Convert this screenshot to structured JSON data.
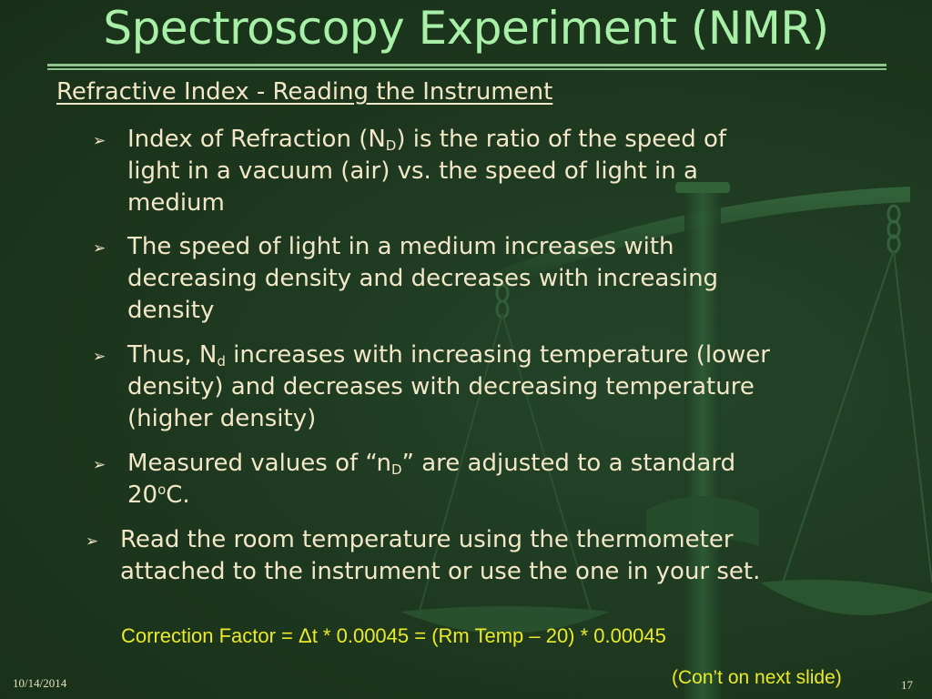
{
  "slide": {
    "title": "Spectroscopy Experiment (NMR)",
    "subtitle": "Refractive Index - Reading the Instrument",
    "bullet_glyph": "➢",
    "bullets": [
      {
        "line1_pre": "Index of Refraction (N",
        "line1_sub": "D",
        "line1_post": ") is the ratio of the speed of",
        "line2": "light in a vacuum (air) vs. the speed of light in a",
        "line3": "medium"
      },
      {
        "line1": "The speed of light in a medium increases with",
        "line2": "decreasing density and decreases with increasing",
        "line3": "density"
      },
      {
        "line1_pre": "Thus, N",
        "line1_sub": "d",
        "line1_post": " increases with increasing temperature (lower",
        "line2": "density) and decreases with decreasing temperature",
        "line3": "(higher density)"
      },
      {
        "line1_pre": "Measured values of  “n",
        "line1_sub": "D",
        "line1_post": "” are adjusted to a standard",
        "line2_pre": "20",
        "line2_sup": "o",
        "line2_post": "C."
      },
      {
        "line1": "Read the room temperature using the thermometer",
        "line2": "attached to the  instrument or use the one in your set."
      }
    ],
    "formula": "Correction Factor  = Δt * 0.00045 = (Rm Temp – 20) * 0.00045",
    "continued": "(Con’t on next slide)",
    "date": "10/14/2014",
    "page_number": "17"
  },
  "colors": {
    "background": "#1c361d",
    "title": "#a8f0a8",
    "body_text": "#f2e7c6",
    "highlight_text": "#eaea2a",
    "rule": "#8fc48f"
  },
  "icons": {
    "bullet": "arrowhead-bullet-icon",
    "background_art": "balance-scale-icon"
  }
}
